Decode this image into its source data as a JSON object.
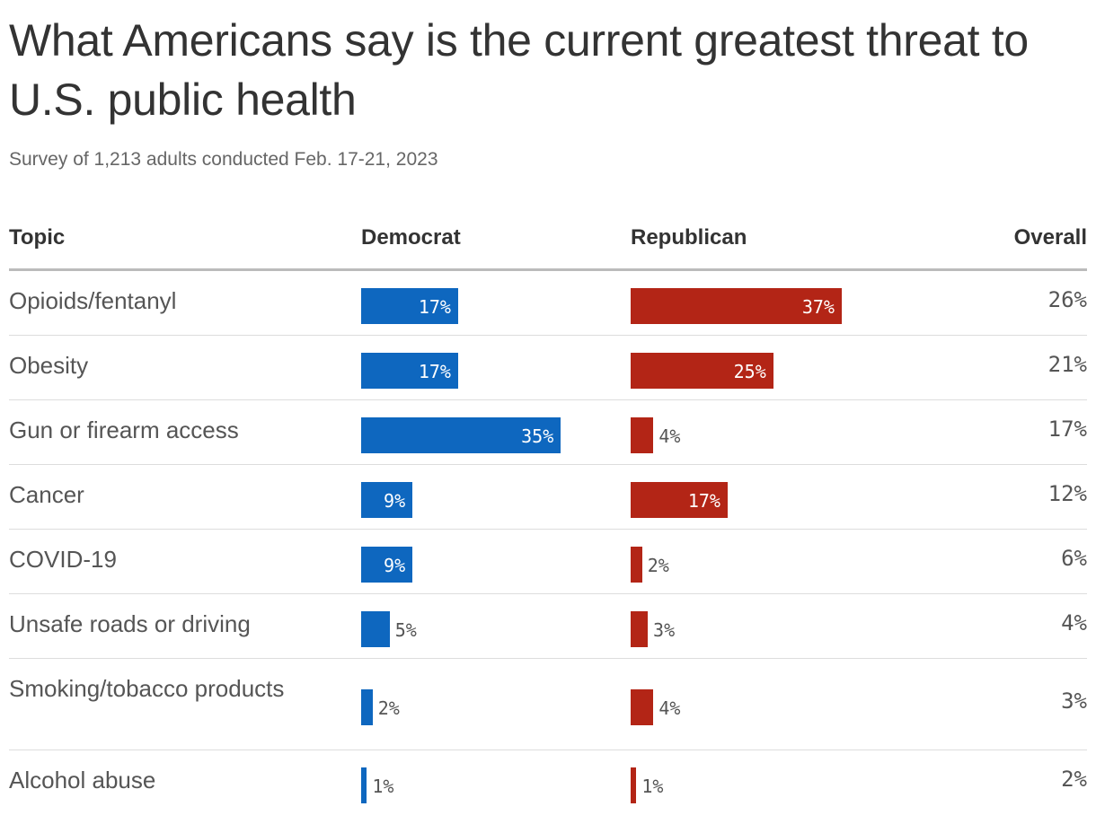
{
  "title": "What Americans say is the current greatest threat to U.S. public health",
  "subtitle": "Survey of 1,213 adults conducted Feb. 17-21, 2023",
  "columns": {
    "topic": "Topic",
    "democrat": "Democrat",
    "republican": "Republican",
    "overall": "Overall"
  },
  "colors": {
    "democrat": "#0e67bf",
    "republican": "#b32516",
    "grid": "#dddddd"
  },
  "chart_data": {
    "type": "bar",
    "categories": [
      "Opioids/fentanyl",
      "Obesity",
      "Gun or firearm access",
      "Cancer",
      "COVID-19",
      "Unsafe roads or driving",
      "Smoking/tobacco products",
      "Alcohol abuse"
    ],
    "series": [
      {
        "name": "Democrat",
        "values": [
          17,
          17,
          35,
          9,
          9,
          5,
          2,
          1
        ]
      },
      {
        "name": "Republican",
        "values": [
          37,
          25,
          4,
          17,
          2,
          3,
          4,
          1
        ]
      },
      {
        "name": "Overall",
        "values": [
          26,
          21,
          17,
          12,
          6,
          4,
          3,
          2
        ]
      }
    ],
    "rows": [
      {
        "topic": "Opioids/fentanyl",
        "democrat": "17%",
        "republican": "37%",
        "overall": "26%"
      },
      {
        "topic": "Obesity",
        "democrat": "17%",
        "republican": "25%",
        "overall": "21%"
      },
      {
        "topic": "Gun or firearm access",
        "democrat": "35%",
        "republican": "4%",
        "overall": "17%"
      },
      {
        "topic": "Cancer",
        "democrat": "9%",
        "republican": "17%",
        "overall": "12%"
      },
      {
        "topic": "COVID-19",
        "democrat": "9%",
        "republican": "2%",
        "overall": "6%"
      },
      {
        "topic": "Unsafe roads or driving",
        "democrat": "5%",
        "republican": "3%",
        "overall": "4%"
      },
      {
        "topic": "Smoking/tobacco products",
        "democrat": "2%",
        "republican": "4%",
        "overall": "3%"
      },
      {
        "topic": "Alcohol abuse",
        "democrat": "1%",
        "republican": "1%",
        "overall": "2%"
      }
    ]
  }
}
